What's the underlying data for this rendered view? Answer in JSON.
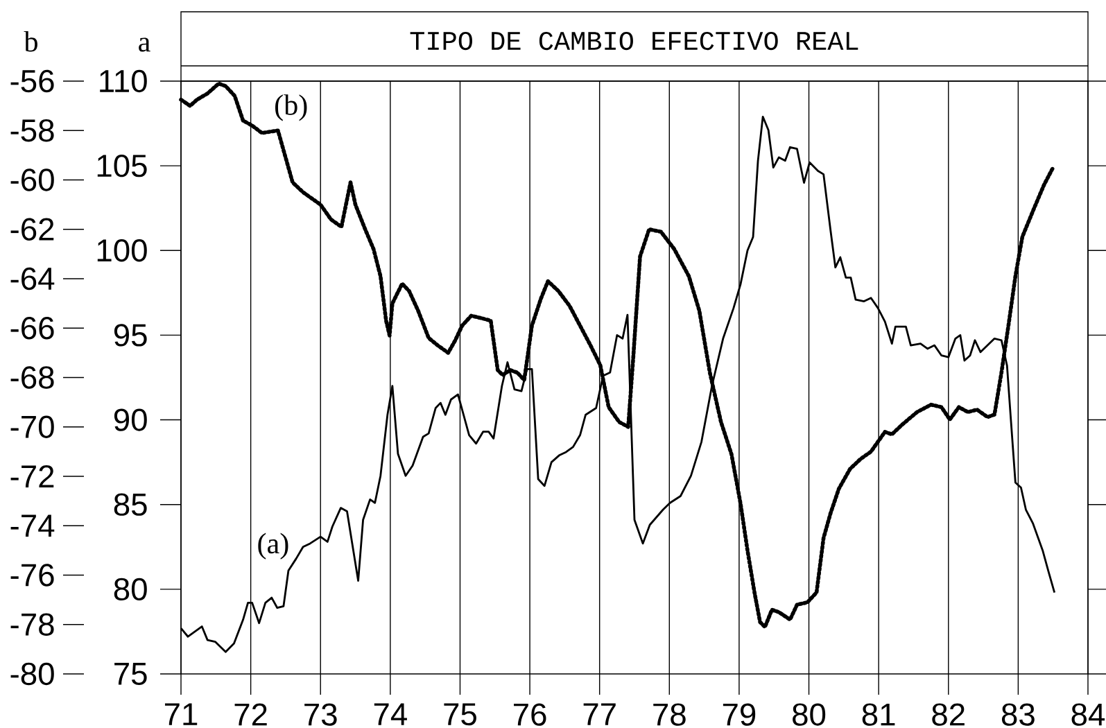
{
  "chart_data": {
    "type": "line",
    "title": "TIPO DE CAMBIO EFECTIVO REAL",
    "ylabel": "a",
    "y2label": "b",
    "xlim": [
      71,
      84
    ],
    "xticks": [
      71,
      72,
      73,
      74,
      75,
      76,
      77,
      78,
      79,
      80,
      81,
      82,
      83,
      84
    ],
    "ylim": [
      75,
      110
    ],
    "yticks": [
      75,
      80,
      85,
      90,
      95,
      100,
      105,
      110
    ],
    "y2lim": [
      -80,
      -56
    ],
    "y2ticks": [
      -80,
      -78,
      -76,
      -74,
      -72,
      -70,
      -68,
      -66,
      -64,
      -62,
      -60,
      -58,
      -56
    ],
    "grid": "x",
    "series": [
      {
        "name": "(a)",
        "color": "#000000",
        "line_style": "solid",
        "x": [
          71.0,
          71.1,
          71.3,
          71.38,
          71.49,
          71.64,
          71.76,
          71.89,
          71.96,
          72.02,
          72.12,
          72.21,
          72.3,
          72.38,
          72.47,
          72.54,
          72.65,
          72.75,
          72.85,
          73.0,
          73.1,
          73.17,
          73.29,
          73.38,
          73.54,
          73.61,
          73.71,
          73.78,
          73.86,
          73.96,
          74.03,
          74.11,
          74.22,
          74.32,
          74.47,
          74.55,
          74.65,
          74.72,
          74.79,
          74.87,
          74.97,
          75.13,
          75.23,
          75.33,
          75.41,
          75.48,
          75.6,
          75.68,
          75.78,
          75.88,
          75.96,
          76.03,
          76.12,
          76.21,
          76.31,
          76.42,
          76.52,
          76.62,
          76.72,
          76.8,
          76.95,
          77.05,
          77.15,
          77.25,
          77.33,
          77.4,
          77.5,
          77.62,
          77.72,
          77.91,
          78.01,
          78.16,
          78.31,
          78.46,
          78.61,
          78.77,
          78.92,
          79.02,
          79.12,
          79.2,
          79.27,
          79.34,
          79.42,
          79.49,
          79.57,
          79.66,
          79.73,
          79.83,
          79.93,
          80.01,
          80.13,
          80.21,
          80.31,
          80.38,
          80.45,
          80.53,
          80.6,
          80.67,
          80.79,
          80.89,
          80.99,
          81.09,
          81.19,
          81.24,
          81.39,
          81.46,
          81.6,
          81.7,
          81.8,
          81.9,
          82.0,
          82.1,
          82.17,
          82.23,
          82.31,
          82.38,
          82.46,
          82.56,
          82.66,
          82.76,
          82.84,
          82.89,
          82.96,
          83.04,
          83.11,
          83.21,
          83.35,
          83.43,
          83.52
        ],
        "values": [
          77.7,
          77.2,
          77.8,
          77.0,
          76.9,
          76.3,
          76.8,
          78.2,
          79.2,
          79.2,
          78.0,
          79.2,
          79.5,
          78.9,
          79.0,
          81.1,
          81.8,
          82.5,
          82.7,
          83.1,
          82.8,
          83.7,
          84.8,
          84.6,
          80.5,
          84.1,
          85.3,
          85.1,
          86.7,
          90.3,
          92.0,
          88.0,
          86.7,
          87.3,
          89.0,
          89.2,
          90.7,
          91.0,
          90.3,
          91.2,
          91.5,
          89.1,
          88.6,
          89.3,
          89.3,
          88.9,
          92.0,
          93.4,
          91.8,
          91.7,
          93.0,
          93.0,
          86.5,
          86.1,
          87.5,
          87.9,
          88.1,
          88.4,
          89.1,
          90.3,
          90.7,
          92.6,
          92.8,
          95.0,
          94.8,
          96.2,
          84.1,
          82.7,
          83.8,
          84.7,
          85.1,
          85.5,
          86.7,
          88.7,
          92.0,
          94.8,
          96.6,
          98.0,
          100.0,
          100.8,
          105.3,
          107.9,
          107.1,
          104.9,
          105.5,
          105.3,
          106.1,
          106.0,
          104.0,
          105.2,
          104.7,
          104.5,
          101.2,
          99.0,
          99.6,
          98.4,
          98.4,
          97.1,
          97.0,
          97.2,
          96.6,
          95.8,
          94.5,
          95.5,
          95.5,
          94.4,
          94.5,
          94.2,
          94.4,
          93.8,
          93.7,
          94.8,
          95.0,
          93.5,
          93.8,
          94.7,
          94.0,
          94.4,
          94.8,
          94.7,
          93.2,
          90.3,
          86.3,
          86.0,
          84.7,
          83.9,
          82.3,
          81.1,
          79.8
        ]
      },
      {
        "name": "(b)",
        "color": "#000000",
        "line_style": "dotted",
        "axis": "y2",
        "x": [
          71.0,
          71.13,
          71.23,
          71.38,
          71.54,
          71.64,
          71.77,
          71.89,
          72.02,
          72.16,
          72.39,
          72.5,
          72.6,
          72.75,
          73.0,
          73.15,
          73.3,
          73.43,
          73.5,
          73.64,
          73.76,
          73.86,
          73.94,
          73.99,
          74.03,
          74.17,
          74.27,
          74.4,
          74.55,
          74.68,
          74.83,
          74.93,
          75.03,
          75.16,
          75.31,
          75.44,
          75.54,
          75.61,
          75.72,
          75.82,
          75.92,
          76.03,
          76.16,
          76.26,
          76.41,
          76.57,
          76.72,
          76.87,
          77.01,
          77.13,
          77.28,
          77.41,
          77.48,
          77.58,
          77.71,
          77.88,
          78.07,
          78.28,
          78.43,
          78.58,
          78.74,
          78.89,
          79.02,
          79.12,
          79.22,
          79.3,
          79.37,
          79.47,
          79.57,
          79.73,
          79.83,
          79.98,
          80.11,
          80.21,
          80.31,
          80.43,
          80.59,
          80.74,
          80.89,
          80.99,
          81.09,
          81.19,
          81.34,
          81.55,
          81.75,
          81.9,
          82.02,
          82.15,
          82.28,
          82.41,
          82.56,
          82.66,
          82.76,
          82.86,
          82.96,
          83.06,
          83.22,
          83.37,
          83.5
        ],
        "values": [
          -56.75,
          -57.0,
          -56.75,
          -56.5,
          -56.1,
          -56.2,
          -56.6,
          -57.6,
          -57.8,
          -58.1,
          -58.0,
          -59.1,
          -60.1,
          -60.5,
          -61.0,
          -61.6,
          -61.9,
          -60.1,
          -61.0,
          -62.0,
          -62.8,
          -63.9,
          -65.7,
          -66.3,
          -65.0,
          -64.2,
          -64.5,
          -65.3,
          -66.4,
          -66.7,
          -67.0,
          -66.5,
          -65.9,
          -65.5,
          -65.6,
          -65.7,
          -67.7,
          -67.9,
          -67.7,
          -67.8,
          -68.1,
          -65.9,
          -64.8,
          -64.1,
          -64.5,
          -65.1,
          -65.9,
          -66.7,
          -67.5,
          -69.2,
          -69.8,
          -70.0,
          -67.3,
          -63.1,
          -62.0,
          -62.1,
          -62.8,
          -63.9,
          -65.3,
          -67.8,
          -69.8,
          -71.1,
          -73.1,
          -75.0,
          -76.7,
          -77.9,
          -78.1,
          -77.4,
          -77.5,
          -77.8,
          -77.2,
          -77.1,
          -76.7,
          -74.5,
          -73.5,
          -72.5,
          -71.7,
          -71.3,
          -71.0,
          -70.6,
          -70.2,
          -70.3,
          -69.9,
          -69.4,
          -69.1,
          -69.2,
          -69.7,
          -69.2,
          -69.4,
          -69.3,
          -69.6,
          -69.5,
          -67.8,
          -65.9,
          -63.9,
          -62.3,
          -61.2,
          -60.2,
          -59.5
        ]
      }
    ]
  }
}
